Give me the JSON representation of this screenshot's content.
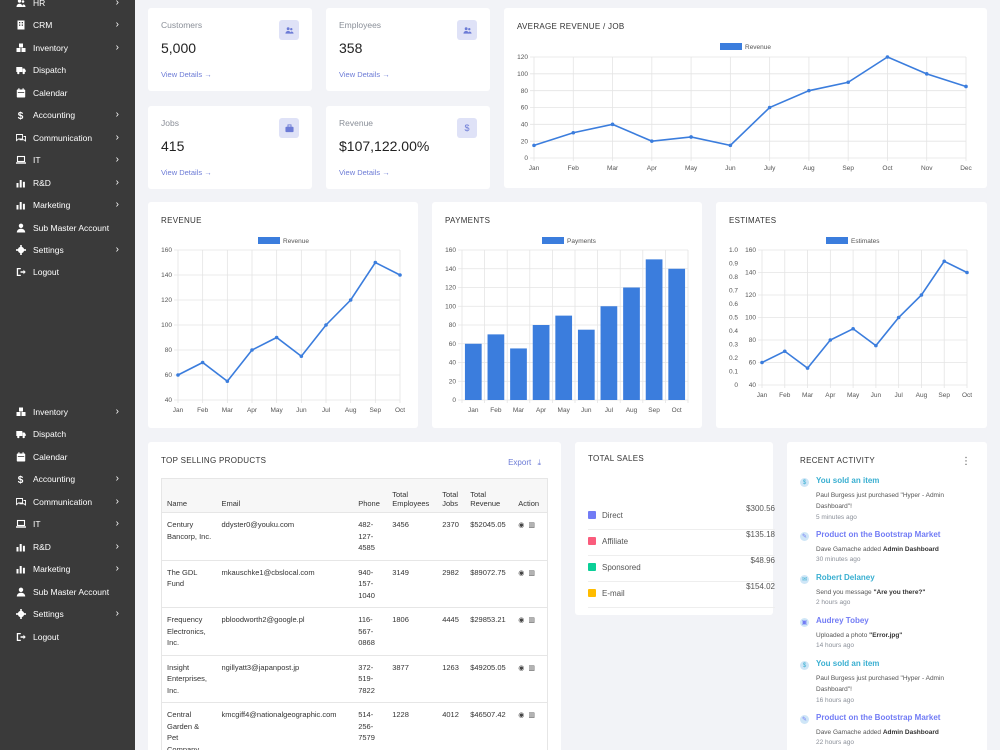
{
  "sidebar": {
    "items_top": [
      {
        "label": "HR",
        "icon": "users-icon",
        "chevron": true
      },
      {
        "label": "CRM",
        "icon": "building-icon",
        "chevron": true
      },
      {
        "label": "Inventory",
        "icon": "boxes-icon",
        "chevron": true
      },
      {
        "label": "Dispatch",
        "icon": "truck-icon",
        "chevron": false
      },
      {
        "label": "Calendar",
        "icon": "calendar-icon",
        "chevron": false
      },
      {
        "label": "Accounting",
        "icon": "dollar-icon",
        "chevron": true
      },
      {
        "label": "Communication",
        "icon": "chat-icon",
        "chevron": true
      },
      {
        "label": "IT",
        "icon": "laptop-icon",
        "chevron": true
      },
      {
        "label": "R&D",
        "icon": "chart-icon",
        "chevron": true
      },
      {
        "label": "Marketing",
        "icon": "chart-icon",
        "chevron": true
      },
      {
        "label": "Sub Master Account",
        "icon": "user-icon",
        "chevron": false
      },
      {
        "label": "Settings",
        "icon": "gear-icon",
        "chevron": true
      },
      {
        "label": "Logout",
        "icon": "logout-icon",
        "chevron": false
      }
    ],
    "items_bottom": [
      {
        "label": "Inventory",
        "icon": "boxes-icon",
        "chevron": true
      },
      {
        "label": "Dispatch",
        "icon": "truck-icon",
        "chevron": false
      },
      {
        "label": "Calendar",
        "icon": "calendar-icon",
        "chevron": false
      },
      {
        "label": "Accounting",
        "icon": "dollar-icon",
        "chevron": true
      },
      {
        "label": "Communication",
        "icon": "chat-icon",
        "chevron": true
      },
      {
        "label": "IT",
        "icon": "laptop-icon",
        "chevron": true
      },
      {
        "label": "R&D",
        "icon": "chart-icon",
        "chevron": true
      },
      {
        "label": "Marketing",
        "icon": "chart-icon",
        "chevron": true
      },
      {
        "label": "Sub Master Account",
        "icon": "user-icon",
        "chevron": false
      },
      {
        "label": "Settings",
        "icon": "gear-icon",
        "chevron": true
      },
      {
        "label": "Logout",
        "icon": "logout-icon",
        "chevron": false
      }
    ]
  },
  "stats": {
    "customers": {
      "label": "Customers",
      "value": "5,000",
      "link": "View Details →"
    },
    "employees": {
      "label": "Employees",
      "value": "358",
      "link": "View Details →"
    },
    "jobs": {
      "label": "Jobs",
      "value": "415",
      "link": "View Details →"
    },
    "revenue": {
      "label": "Revenue",
      "value": "$107,122.00%",
      "link": "View Details →"
    }
  },
  "colors": {
    "accent": "#6c7bd6",
    "chart_blue": "#3b7ddd",
    "sidebar": "#3a3a3a"
  },
  "chart_data": [
    {
      "id": "avg",
      "type": "line",
      "title": "AVERAGE REVENUE / JOB",
      "legend": "Revenue",
      "categories": [
        "Jan",
        "Feb",
        "Mar",
        "Apr",
        "May",
        "Jun",
        "July",
        "Aug",
        "Sep",
        "Oct",
        "Nov",
        "Dec"
      ],
      "values": [
        15,
        30,
        40,
        20,
        25,
        15,
        60,
        80,
        90,
        120,
        100,
        85
      ],
      "ylim": [
        0,
        120
      ],
      "yticks": [
        0,
        20,
        40,
        60,
        80,
        100,
        120
      ]
    },
    {
      "id": "rev",
      "type": "line",
      "title": "REVENUE",
      "legend": "Revenue",
      "categories": [
        "Jan",
        "Feb",
        "Mar",
        "Apr",
        "May",
        "Jun",
        "Jul",
        "Aug",
        "Sep",
        "Oct"
      ],
      "values": [
        60,
        70,
        55,
        80,
        90,
        75,
        100,
        120,
        150,
        140
      ],
      "ylim": [
        40,
        160
      ],
      "yticks": [
        40,
        60,
        80,
        100,
        120,
        140,
        160
      ]
    },
    {
      "id": "pay",
      "type": "bar",
      "title": "PAYMENTS",
      "legend": "Payments",
      "categories": [
        "Jan",
        "Feb",
        "Mar",
        "Apr",
        "May",
        "Jun",
        "Jul",
        "Aug",
        "Sep",
        "Oct"
      ],
      "values": [
        60,
        70,
        55,
        80,
        90,
        75,
        100,
        120,
        150,
        140
      ],
      "ylim": [
        0,
        160
      ],
      "yticks": [
        0,
        20,
        40,
        60,
        80,
        100,
        120,
        140,
        160
      ]
    },
    {
      "id": "est",
      "type": "line",
      "title": "ESTIMATES",
      "legend": "Estimates",
      "categories": [
        "Jan",
        "Feb",
        "Mar",
        "Apr",
        "May",
        "Jun",
        "Jul",
        "Aug",
        "Sep",
        "Oct"
      ],
      "values": [
        60,
        70,
        55,
        80,
        90,
        75,
        100,
        120,
        150,
        140
      ],
      "ylim": [
        40,
        160
      ],
      "yticks": [
        40,
        60,
        80,
        100,
        120,
        140,
        160
      ],
      "y2ticks": [
        "0",
        "0.1",
        "0.2",
        "0.3",
        "0.4",
        "0.5",
        "0.6",
        "0.7",
        "0.8",
        "0.9",
        "1.0"
      ]
    }
  ],
  "products": {
    "title": "TOP SELLING PRODUCTS",
    "export_label": "Export",
    "headers": [
      "Name",
      "Email",
      "Phone",
      "Total Employees",
      "Total Jobs",
      "Total Revenue",
      "Action"
    ],
    "rows": [
      {
        "name": "Century Bancorp, Inc.",
        "email": "ddyster0@youku.com",
        "phone": "482-127-4585",
        "employees": "3456",
        "jobs": "2370",
        "revenue": "$52045.05"
      },
      {
        "name": "The GDL Fund",
        "email": "mkauschke1@cbslocal.com",
        "phone": "940-157-1040",
        "employees": "3149",
        "jobs": "2982",
        "revenue": "$89072.75"
      },
      {
        "name": "Frequency Electronics, Inc.",
        "email": "pbloodworth2@google.pl",
        "phone": "116-567-0868",
        "employees": "1806",
        "jobs": "4445",
        "revenue": "$29853.21"
      },
      {
        "name": "Insight Enterprises, Inc.",
        "email": "ngillyatt3@japanpost.jp",
        "phone": "372-519-7822",
        "employees": "3877",
        "jobs": "1263",
        "revenue": "$49205.05"
      },
      {
        "name": "Central Garden & Pet Company",
        "email": "kmcgiff4@nationalgeographic.com",
        "phone": "514-256-7579",
        "employees": "1228",
        "jobs": "4012",
        "revenue": "$46507.42"
      }
    ]
  },
  "sales": {
    "title": "TOTAL SALES",
    "rows": [
      {
        "label": "Direct",
        "value": "$300.56",
        "color": "#727cf5"
      },
      {
        "label": "Affiliate",
        "value": "$135.18",
        "color": "#fa5c7c"
      },
      {
        "label": "Sponsored",
        "value": "$48.96",
        "color": "#0acf97"
      },
      {
        "label": "E-mail",
        "value": "$154.02",
        "color": "#ffbc00"
      }
    ]
  },
  "activity": {
    "title": "RECENT ACTIVITY",
    "items": [
      {
        "title": "You sold an item",
        "desc": "Paul Burgess just purchased \"Hyper - Admin Dashboard\"!",
        "bold": "",
        "time": "5 minutes ago",
        "color": "#39afd1",
        "icon": "$"
      },
      {
        "title": "Product on the Bootstrap Market",
        "desc": "Dave Gamache added ",
        "bold": "Admin Dashboard",
        "time": "30 minutes ago",
        "color": "#727cf5",
        "icon": "✎"
      },
      {
        "title": "Robert Delaney",
        "desc": "Send you message ",
        "bold": "\"Are you there?\"",
        "time": "2 hours ago",
        "color": "#39afd1",
        "icon": "✉"
      },
      {
        "title": "Audrey Tobey",
        "desc": "Uploaded a photo ",
        "bold": "\"Error.jpg\"",
        "time": "14 hours ago",
        "color": "#727cf5",
        "icon": "▣"
      },
      {
        "title": "You sold an item",
        "desc": "Paul Burgess just purchased \"Hyper - Admin Dashboard\"!",
        "bold": "",
        "time": "16 hours ago",
        "color": "#39afd1",
        "icon": "$"
      },
      {
        "title": "Product on the Bootstrap Market",
        "desc": "Dave Gamache added ",
        "bold": "Admin Dashboard",
        "time": "22 hours ago",
        "color": "#727cf5",
        "icon": "✎"
      }
    ]
  }
}
